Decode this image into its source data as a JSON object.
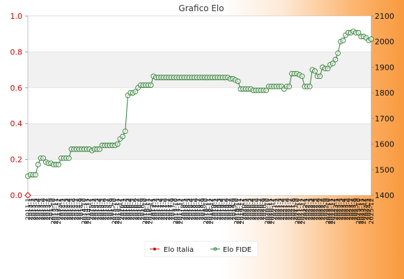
{
  "chart_data": {
    "type": "line",
    "title": "Grafico Elo",
    "y_left": {
      "ylim": [
        0.0,
        1.0
      ],
      "ticks": [
        "0.0",
        "0.2",
        "0.4",
        "0.6",
        "0.8",
        "1.0"
      ],
      "color": "#cc0000"
    },
    "y_right": {
      "ylim": [
        1400,
        2100
      ],
      "ticks": [
        "1400",
        "1500",
        "1600",
        "1700",
        "1800",
        "1900",
        "2000",
        "2100"
      ]
    },
    "grid": "horizontal bands",
    "legend": {
      "placement": "bottom-center"
    },
    "series": [
      {
        "name": "Elo Italia",
        "axis": "left",
        "color": "#cc0000",
        "values": [
          0.0
        ]
      },
      {
        "name": "Elo FIDE",
        "axis": "right",
        "color": "#2e7d32",
        "values": [
          1475,
          1480,
          1480,
          1480,
          1520,
          1545,
          1545,
          1530,
          1525,
          1525,
          1520,
          1520,
          1520,
          1545,
          1545,
          1545,
          1545,
          1580,
          1580,
          1580,
          1580,
          1580,
          1580,
          1580,
          1580,
          1575,
          1580,
          1580,
          1580,
          1595,
          1595,
          1595,
          1595,
          1595,
          1595,
          1600,
          1620,
          1630,
          1650,
          1790,
          1800,
          1800,
          1805,
          1820,
          1830,
          1830,
          1830,
          1830,
          1830,
          1865,
          1860,
          1860,
          1860,
          1860,
          1860,
          1860,
          1860,
          1860,
          1860,
          1860,
          1860,
          1860,
          1860,
          1860,
          1860,
          1860,
          1860,
          1860,
          1860,
          1860,
          1860,
          1860,
          1860,
          1860,
          1860,
          1860,
          1860,
          1860,
          1860,
          1855,
          1855,
          1850,
          1845,
          1815,
          1815,
          1815,
          1815,
          1815,
          1810,
          1810,
          1810,
          1810,
          1810,
          1810,
          1825,
          1825,
          1825,
          1825,
          1825,
          1825,
          1815,
          1825,
          1825,
          1875,
          1875,
          1875,
          1870,
          1865,
          1825,
          1825,
          1825,
          1890,
          1885,
          1865,
          1865,
          1900,
          1895,
          1895,
          1910,
          1915,
          1930,
          1955,
          2000,
          2005,
          2025,
          2035,
          2035,
          2040,
          2035,
          2035,
          2020,
          2020,
          2015,
          2005,
          2010
        ]
      }
    ],
    "x_labels": [
      "2011-1",
      "2013-1",
      "2013-2",
      "2013-3",
      "2013-4",
      "2013-5",
      "2013-6",
      "2013-7",
      "2013-8",
      "2013-9",
      "2013-10",
      "2013-11",
      "2013-12",
      "2014-1",
      "2014-2",
      "2014-3",
      "2014-4",
      "2014-5",
      "2014-6",
      "2014-7",
      "2014-8",
      "2014-9",
      "2014-10",
      "2014-11",
      "2014-12",
      "2015-1",
      "2015-2",
      "2015-3",
      "2015-4",
      "2015-5",
      "2015-6",
      "2015-7",
      "2015-8",
      "2015-9",
      "2015-10",
      "2015-11",
      "2015-12",
      "2016-1",
      "2016-2",
      "2016-3",
      "2016-4",
      "2016-5",
      "2016-6",
      "2016-7",
      "2016-8",
      "2016-9",
      "2016-10",
      "2016-11",
      "2016-12",
      "2017-1",
      "2017-2",
      "2017-3",
      "2017-4",
      "2017-5",
      "2017-6",
      "2017-7",
      "2017-8",
      "2017-9",
      "2017-10",
      "2017-11",
      "2017-12",
      "2018-1",
      "2018-2",
      "2018-3",
      "2018-4",
      "2018-5",
      "2018-6",
      "2018-7",
      "2018-8",
      "2018-9",
      "2018-10",
      "2018-11",
      "2018-12",
      "2019-1",
      "2019-2",
      "2019-3",
      "2019-4",
      "2019-5",
      "2019-6",
      "2019-7",
      "2019-8",
      "2019-9",
      "2019-10",
      "2019-11",
      "2019-12",
      "2020-1",
      "2020-2",
      "2020-3",
      "2020-4",
      "2020-5",
      "2020-6",
      "2020-7",
      "2020-8",
      "2020-9",
      "2020-10",
      "2020-11",
      "2020-12",
      "2021-1",
      "2021-2",
      "2021-3",
      "2021-4",
      "2021-5",
      "2021-6",
      "2021-7",
      "2021-8",
      "2021-9",
      "2021-10",
      "2021-11",
      "2021-12",
      "2022-1",
      "2022-2",
      "2022-3",
      "2022-4",
      "2022-5",
      "2022-6",
      "2022-7",
      "2022-8",
      "2022-9",
      "2022-10",
      "2022-11",
      "2022-12",
      "2023-1",
      "2023-2",
      "2023-3",
      "2023-4",
      "2023-5",
      "2023-6",
      "2023-7",
      "2023-8",
      "2023-9",
      "2023-10",
      "2023-11",
      "2023-12",
      "2024-1",
      "2024-2",
      "2025-12"
    ]
  }
}
